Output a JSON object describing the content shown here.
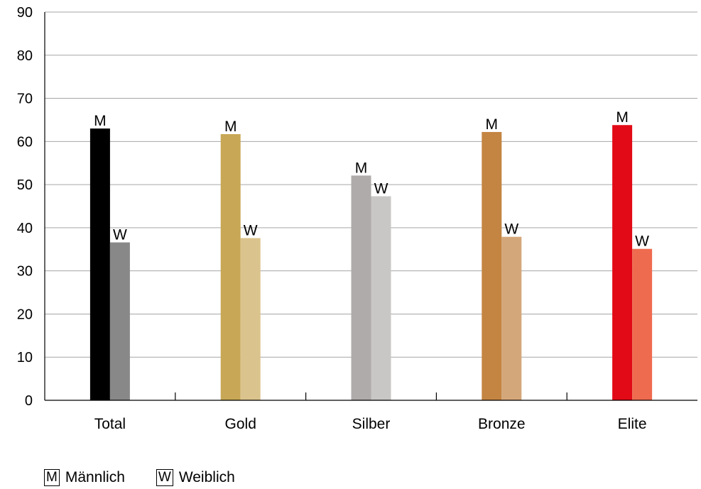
{
  "chart_data": {
    "type": "bar",
    "categories": [
      "Total",
      "Gold",
      "Silber",
      "Bronze",
      "Elite"
    ],
    "series": [
      {
        "name": "Männlich",
        "key": "M",
        "values": [
          63,
          61.7,
          52.1,
          62.2,
          63.8
        ],
        "colors": [
          "#000000",
          "#c8a856",
          "#afabaa",
          "#c48542",
          "#e20a16"
        ]
      },
      {
        "name": "Weiblich",
        "key": "W",
        "values": [
          36.6,
          37.6,
          47.3,
          37.9,
          35.1
        ],
        "colors": [
          "#888888",
          "#dbc38d",
          "#c8c7c6",
          "#d4a77a",
          "#ef6b4f"
        ]
      }
    ],
    "ylim": [
      0,
      90
    ],
    "yticks": [
      0,
      10,
      20,
      30,
      40,
      50,
      60,
      70,
      80,
      90
    ],
    "grid": true,
    "legend_position": "bottom-left",
    "title": "",
    "xlabel": "",
    "ylabel": ""
  },
  "legend": [
    {
      "key": "M",
      "label": "Männlich"
    },
    {
      "key": "W",
      "label": "Weiblich"
    }
  ]
}
